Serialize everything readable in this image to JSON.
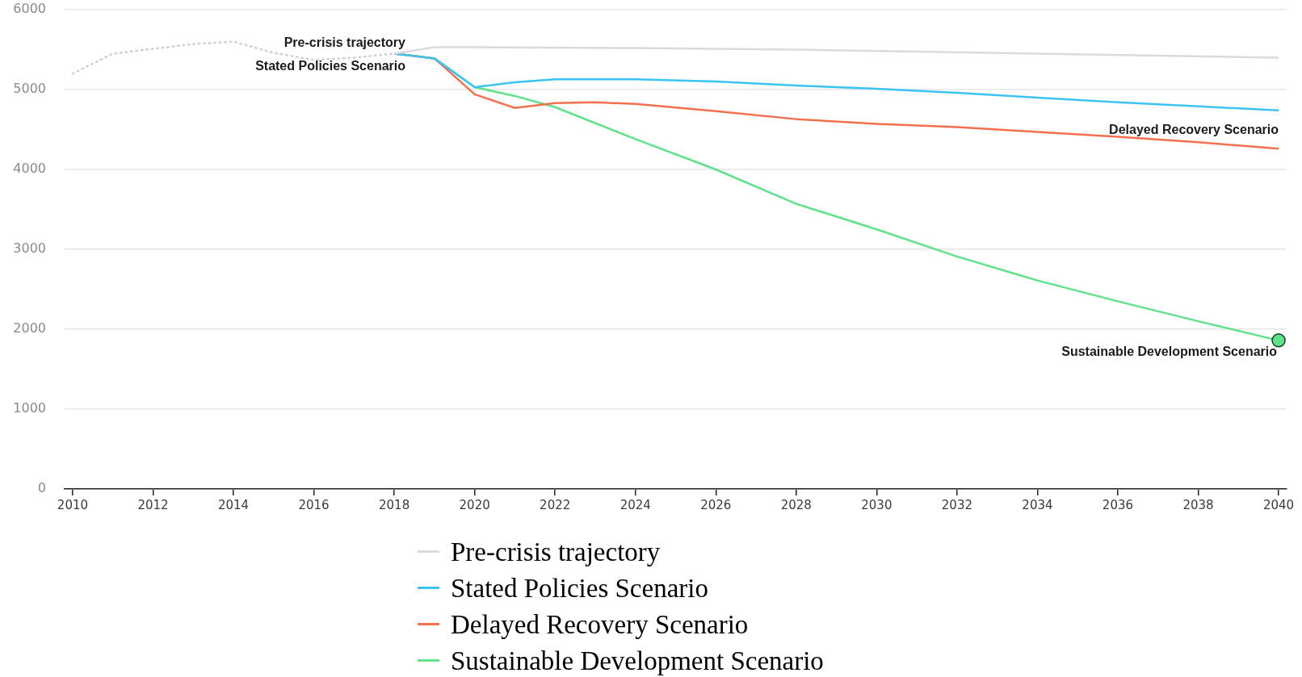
{
  "chart_data": {
    "type": "line",
    "xlim": [
      2009.8,
      2040.2
    ],
    "xticks": [
      2010,
      2012,
      2014,
      2016,
      2018,
      2020,
      2022,
      2024,
      2026,
      2028,
      2030,
      2032,
      2034,
      2036,
      2038,
      2040
    ],
    "ylim": [
      0,
      6000
    ],
    "yticks": [
      0,
      1000,
      2000,
      3000,
      4000,
      5000,
      6000
    ],
    "grid": "y",
    "legend": "bottom",
    "series": [
      {
        "color": "#d0d0d0",
        "line_style": "dotted",
        "x": [
          2010,
          2011,
          2012,
          2013,
          2014,
          2015,
          2016,
          2017,
          2018
        ],
        "values": [
          5200,
          5450,
          5510,
          5570,
          5600,
          5460,
          5370,
          5400,
          5450
        ]
      },
      {
        "name": "Pre-crisis trajectory",
        "color": "#dadada",
        "x": [
          2018,
          2019,
          2020,
          2024,
          2028,
          2034,
          2040
        ],
        "values": [
          5450,
          5530,
          5530,
          5520,
          5500,
          5450,
          5400
        ]
      },
      {
        "name": "Stated Policies Scenario",
        "color": "#3cc3f2",
        "x": [
          2018,
          2019,
          2020,
          2021,
          2022,
          2024,
          2026,
          2028,
          2030,
          2032,
          2034,
          2036,
          2038,
          2040
        ],
        "values": [
          5450,
          5390,
          5030,
          5090,
          5130,
          5130,
          5100,
          5050,
          5010,
          4960,
          4900,
          4840,
          4790,
          4740
        ]
      },
      {
        "name": "Delayed Recovery Scenario",
        "color": "#f3704f",
        "x": [
          2018,
          2019,
          2020,
          2021,
          2022,
          2023,
          2024,
          2026,
          2028,
          2030,
          2032,
          2034,
          2036,
          2038,
          2040
        ],
        "values": [
          5450,
          5390,
          4940,
          4770,
          4830,
          4840,
          4820,
          4730,
          4630,
          4570,
          4530,
          4470,
          4410,
          4340,
          4260
        ]
      },
      {
        "name": "Sustainable Development Scenario",
        "color": "#5fe28a",
        "x": [
          2018,
          2019,
          2020,
          2021,
          2022,
          2024,
          2026,
          2028,
          2030,
          2032,
          2034,
          2036,
          2038,
          2040
        ],
        "values": [
          5450,
          5390,
          5030,
          4920,
          4780,
          4380,
          4000,
          3570,
          3250,
          2910,
          2610,
          2350,
          2100,
          1860
        ]
      },
      {
        "type": "scatter",
        "marker": "circle",
        "color": "#5fe28a",
        "x": [
          2040
        ],
        "values": [
          1860
        ]
      }
    ],
    "annotations": [
      "Pre-crisis trajectory",
      "Stated Policies Scenario",
      "Delayed Recovery Scenario",
      "Sustainable Development Scenario"
    ]
  }
}
